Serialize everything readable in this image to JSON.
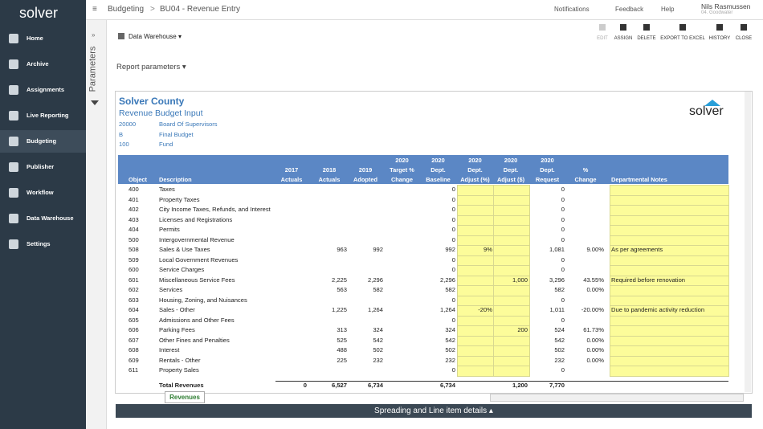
{
  "app": {
    "logo": "solver",
    "nav": [
      "Home",
      "Archive",
      "Assignments",
      "Live Reporting",
      "Budgeting",
      "Publisher",
      "Workflow",
      "Data Warehouse",
      "Settings"
    ],
    "active": "Budgeting"
  },
  "topbar": {
    "breadcrumb": [
      "Budgeting",
      ">",
      "BU04 - Revenue Entry"
    ],
    "links": [
      "Notifications",
      "Feedback",
      "Help"
    ],
    "user": "Nils Rasmussen",
    "user_sub": "04. Goodwater"
  },
  "panel": {
    "title": "Parameters"
  },
  "toolbar": {
    "source": "Data Warehouse",
    "actions": [
      "EDIT",
      "ASSIGN",
      "DELETE",
      "EXPORT TO EXCEL",
      "HISTORY",
      "CLOSE"
    ]
  },
  "report_parameters": "Report parameters",
  "report": {
    "title": "Solver County",
    "subtitle": "Revenue Budget Input",
    "logo": "solver",
    "params": [
      [
        "20000",
        "Board Of Supervisors"
      ],
      [
        "B",
        "Final Budget"
      ],
      [
        "100",
        "Fund"
      ]
    ],
    "headers": [
      [
        "Object"
      ],
      [
        "Description"
      ],
      [
        "2017",
        "Actuals"
      ],
      [
        "2018",
        "Actuals"
      ],
      [
        "2019",
        "Adopted"
      ],
      [
        "2020",
        "Target %",
        "Change"
      ],
      [
        "2020",
        "Dept.",
        "Baseline"
      ],
      [
        "2020",
        "Dept.",
        "Adjust (%)"
      ],
      [
        "2020",
        "Dept.",
        "Adjust ($)"
      ],
      [
        "2020",
        "Dept.",
        "Request"
      ],
      [
        "%",
        "Change"
      ],
      [
        "Departmental Notes"
      ]
    ],
    "rows": [
      [
        "400",
        "Taxes",
        null,
        null,
        null,
        null,
        "0",
        null,
        null,
        "0",
        null,
        null
      ],
      [
        "401",
        "Property Taxes",
        null,
        null,
        null,
        null,
        "0",
        null,
        null,
        "0",
        null,
        null
      ],
      [
        "402",
        "City Income Taxes, Refunds, and Interest",
        null,
        null,
        null,
        null,
        "0",
        null,
        null,
        "0",
        null,
        null
      ],
      [
        "403",
        "Licenses and Registrations",
        null,
        null,
        null,
        null,
        "0",
        null,
        null,
        "0",
        null,
        null
      ],
      [
        "404",
        "Permits",
        null,
        null,
        null,
        null,
        "0",
        null,
        null,
        "0",
        null,
        null
      ],
      [
        "500",
        "Intergovernmental Revenue",
        null,
        null,
        null,
        null,
        "0",
        null,
        null,
        "0",
        null,
        null
      ],
      [
        "508",
        "Sales & Use Taxes",
        null,
        "963",
        "992",
        null,
        "992",
        "9%",
        null,
        "1,081",
        "9.00%",
        "As per agreements"
      ],
      [
        "509",
        "Local Government Revenues",
        null,
        null,
        null,
        null,
        "0",
        null,
        null,
        "0",
        null,
        null
      ],
      [
        "600",
        "Service Charges",
        null,
        null,
        null,
        null,
        "0",
        null,
        null,
        "0",
        null,
        null
      ],
      [
        "601",
        "Miscellaneous Service Fees",
        null,
        "2,225",
        "2,296",
        null,
        "2,296",
        null,
        "1,000",
        "3,296",
        "43.55%",
        "Required before renovation"
      ],
      [
        "602",
        "Services",
        null,
        "563",
        "582",
        null,
        "582",
        null,
        null,
        "582",
        "0.00%",
        null
      ],
      [
        "603",
        "Housing, Zoning, and Nuisances",
        null,
        null,
        null,
        null,
        "0",
        null,
        null,
        "0",
        null,
        null
      ],
      [
        "604",
        "Sales - Other",
        null,
        "1,225",
        "1,264",
        null,
        "1,264",
        "-20%",
        null,
        "1,011",
        "-20.00%",
        "Due to pandemic activity reduction"
      ],
      [
        "605",
        "Admissions and Other Fees",
        null,
        null,
        null,
        null,
        "0",
        null,
        null,
        "0",
        null,
        null
      ],
      [
        "606",
        "Parking Fees",
        null,
        "313",
        "324",
        null,
        "324",
        null,
        "200",
        "524",
        "61.73%",
        null
      ],
      [
        "607",
        "Other Fines and Penalties",
        null,
        "525",
        "542",
        null,
        "542",
        null,
        null,
        "542",
        "0.00%",
        null
      ],
      [
        "608",
        "Interest",
        null,
        "488",
        "502",
        null,
        "502",
        null,
        null,
        "502",
        "0.00%",
        null
      ],
      [
        "609",
        "Rentals - Other",
        null,
        "225",
        "232",
        null,
        "232",
        null,
        null,
        "232",
        "0.00%",
        null
      ],
      [
        "611",
        "Property Sales",
        null,
        null,
        null,
        null,
        "0",
        null,
        null,
        "0",
        null,
        null
      ]
    ],
    "total": [
      null,
      "Total Revenues",
      "0",
      "6,527",
      "6,734",
      null,
      "6,734",
      null,
      "1,200",
      "7,770",
      null,
      null
    ]
  },
  "sheet_tab": "Revenues",
  "bottom_bar": "Spreading and Line item details"
}
